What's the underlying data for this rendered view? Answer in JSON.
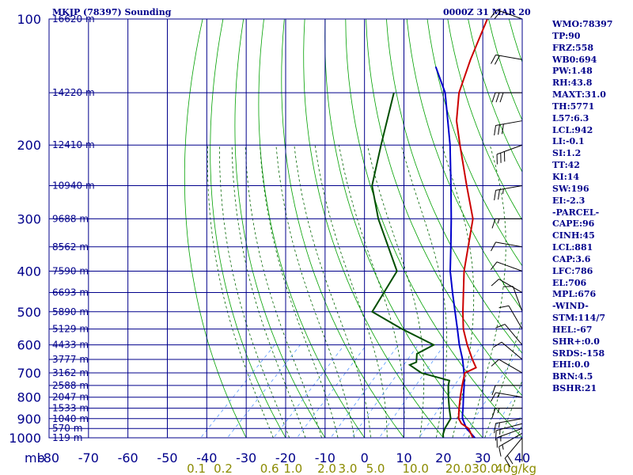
{
  "header": {
    "title": "MKJP (78397) Sounding",
    "datetime": "0000Z 31 MAR 20"
  },
  "indices": [
    "WMO:78397",
    "TP:90",
    "FRZ:558",
    "WB0:694",
    "PW:1.48",
    "RH:43.8",
    "MAXT:31.0",
    "TH:5771",
    "L57:6.3",
    "LCL:942",
    "LI:-0.1",
    "SI:1.2",
    "TT:42",
    "KI:14",
    "SW:196",
    "EI:-2.3",
    "-PARCEL-",
    "CAPE:96",
    "CINH:45",
    "LCL:881",
    "CAP:3.6",
    "LFC:786",
    "EL:706",
    "MPL:676",
    "-WIND-",
    "STM:114/7",
    "HEL:-67",
    "SHR+:0.0",
    "SRDS:-158",
    "EHI:0.0",
    "BRN:4.5",
    "BSHR:21"
  ],
  "colors": {
    "grid": "#00008b",
    "dry_adiabat": "#00a000",
    "moist_adiabat": "#006400",
    "mixing_ratio": "#5599ff",
    "temperature": "#cc0000",
    "dewpoint": "#004d00",
    "parcel": "#0000cc",
    "axis_text": "#00008b",
    "mixing_ratio_text": "#8b8b00",
    "wind": "#000000"
  },
  "chart_data": {
    "type": "line",
    "title": "MKJP (78397) Sounding",
    "subtitle": "0000Z 31 MAR 20",
    "xlabel": "",
    "ylabel": "mb",
    "xlim": [
      -80,
      40
    ],
    "ylim": [
      1000,
      100
    ],
    "y_scale": "log",
    "grid": true,
    "x_ticks": [
      "-80",
      "-70",
      "-60",
      "-50",
      "-40",
      "-30",
      "-20",
      "-10",
      "0",
      "10",
      "20",
      "30",
      "40"
    ],
    "y_ticks": [
      100,
      200,
      300,
      400,
      500,
      600,
      700,
      800,
      900,
      1000
    ],
    "height_labels": [
      {
        "p": 100,
        "label": "16620 m"
      },
      {
        "p": 150,
        "label": "14220 m"
      },
      {
        "p": 200,
        "label": "12410 m"
      },
      {
        "p": 250,
        "label": "10940 m"
      },
      {
        "p": 300,
        "label": "9688 m"
      },
      {
        "p": 350,
        "label": "8562 m"
      },
      {
        "p": 400,
        "label": "7590 m"
      },
      {
        "p": 450,
        "label": "6693 m"
      },
      {
        "p": 500,
        "label": "5890 m"
      },
      {
        "p": 550,
        "label": "5129 m"
      },
      {
        "p": 600,
        "label": "4433 m"
      },
      {
        "p": 650,
        "label": "3777 m"
      },
      {
        "p": 700,
        "label": "3162 m"
      },
      {
        "p": 750,
        "label": "2588 m"
      },
      {
        "p": 800,
        "label": "2047 m"
      },
      {
        "p": 850,
        "label": "1533 m"
      },
      {
        "p": 900,
        "label": "1040 m"
      },
      {
        "p": 950,
        "label": "570 m"
      },
      {
        "p": 1000,
        "label": "119 m"
      }
    ],
    "mixing_ratio_labels": [
      "0.1",
      "0.2",
      "0.6",
      "1.0",
      "2.0",
      "3.0",
      "5.0",
      "10.0",
      "20.0",
      "30.0",
      "40g/kg"
    ],
    "mixing_ratio_values": [
      0.1,
      0.2,
      0.6,
      1.0,
      2.0,
      3.0,
      5.0,
      10.0,
      20.0,
      30.0,
      40.0
    ],
    "series": [
      {
        "name": "temperature",
        "points": [
          [
            1008,
            28.0
          ],
          [
            1000,
            27.5
          ],
          [
            950,
            24.0
          ],
          [
            925,
            21.0
          ],
          [
            900,
            19.0
          ],
          [
            850,
            16.5
          ],
          [
            800,
            14.0
          ],
          [
            750,
            11.5
          ],
          [
            700,
            9.0
          ],
          [
            680,
            10.5
          ],
          [
            650,
            7.5
          ],
          [
            600,
            2.5
          ],
          [
            550,
            -2.5
          ],
          [
            500,
            -7.0
          ],
          [
            400,
            -17.0
          ],
          [
            300,
            -28.0
          ],
          [
            250,
            -38.0
          ],
          [
            200,
            -50.0
          ],
          [
            175,
            -57.0
          ],
          [
            150,
            -63.5
          ],
          [
            125,
            -69.0
          ],
          [
            100,
            -75.0
          ]
        ]
      },
      {
        "name": "dewpoint",
        "points": [
          [
            1000,
            20.0
          ],
          [
            980,
            19.0
          ],
          [
            950,
            18.0
          ],
          [
            900,
            17.0
          ],
          [
            850,
            14.0
          ],
          [
            800,
            11.0
          ],
          [
            750,
            8.0
          ],
          [
            730,
            7.0
          ],
          [
            700,
            -2.0
          ],
          [
            670,
            -7.0
          ],
          [
            660,
            -6.0
          ],
          [
            630,
            -8.0
          ],
          [
            600,
            -6.0
          ],
          [
            550,
            -18.0
          ],
          [
            500,
            -30.0
          ],
          [
            400,
            -34.0
          ],
          [
            300,
            -52.0
          ],
          [
            250,
            -62.0
          ],
          [
            200,
            -70.0
          ],
          [
            150,
            -80.0
          ]
        ]
      },
      {
        "name": "parcel",
        "points": [
          [
            1000,
            28.0
          ],
          [
            950,
            23.5
          ],
          [
            900,
            20.0
          ],
          [
            881,
            19.0
          ],
          [
            850,
            17.5
          ],
          [
            800,
            14.8
          ],
          [
            750,
            12.0
          ],
          [
            700,
            8.8
          ],
          [
            650,
            5.0
          ],
          [
            600,
            0.5
          ],
          [
            550,
            -4.0
          ],
          [
            500,
            -9.0
          ],
          [
            450,
            -14.5
          ],
          [
            400,
            -20.5
          ],
          [
            350,
            -26.5
          ],
          [
            300,
            -33.5
          ],
          [
            250,
            -42.0
          ],
          [
            200,
            -52.5
          ],
          [
            150,
            -67.0
          ],
          [
            130,
            -76.0
          ]
        ]
      }
    ],
    "wind_barbs": [
      {
        "p": 1000,
        "dir": 220,
        "kt": 20
      },
      {
        "p": 975,
        "dir": 240,
        "kt": 15
      },
      {
        "p": 950,
        "dir": 250,
        "kt": 15
      },
      {
        "p": 925,
        "dir": 255,
        "kt": 15
      },
      {
        "p": 900,
        "dir": 260,
        "kt": 15
      },
      {
        "p": 850,
        "dir": 270,
        "kt": 15
      },
      {
        "p": 800,
        "dir": 280,
        "kt": 15
      },
      {
        "p": 750,
        "dir": 270,
        "kt": 10
      },
      {
        "p": 700,
        "dir": 300,
        "kt": 10
      },
      {
        "p": 650,
        "dir": 310,
        "kt": 10
      },
      {
        "p": 600,
        "dir": 320,
        "kt": 10
      },
      {
        "p": 550,
        "dir": 330,
        "kt": 10
      },
      {
        "p": 500,
        "dir": 340,
        "kt": 10
      },
      {
        "p": 450,
        "dir": 300,
        "kt": 10
      },
      {
        "p": 400,
        "dir": 290,
        "kt": 10
      },
      {
        "p": 350,
        "dir": 280,
        "kt": 10
      },
      {
        "p": 300,
        "dir": 270,
        "kt": 15
      },
      {
        "p": 250,
        "dir": 260,
        "kt": 25
      },
      {
        "p": 200,
        "dir": 250,
        "kt": 30
      },
      {
        "p": 175,
        "dir": 260,
        "kt": 30
      },
      {
        "p": 150,
        "dir": 270,
        "kt": 30
      },
      {
        "p": 125,
        "dir": 280,
        "kt": 20
      },
      {
        "p": 100,
        "dir": 290,
        "kt": 20
      }
    ]
  }
}
